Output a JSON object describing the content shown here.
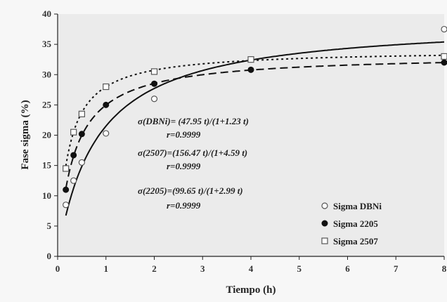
{
  "chart_data": {
    "type": "scatter",
    "xlabel": "Tiempo (h)",
    "ylabel": "Fase sigma (%)",
    "xlim": [
      0,
      8
    ],
    "ylim": [
      0,
      40
    ],
    "x_ticks": [
      0,
      1,
      2,
      3,
      4,
      5,
      6,
      7,
      8
    ],
    "y_ticks": [
      0,
      5,
      10,
      15,
      20,
      25,
      30,
      35,
      40
    ],
    "grid": false,
    "legend_position": "bottom-right",
    "series": [
      {
        "name": "Sigma DBNi",
        "marker": "open-circle",
        "line_style": "solid",
        "points": [
          [
            0.17,
            8.5
          ],
          [
            0.33,
            12.5
          ],
          [
            0.5,
            15.5
          ],
          [
            1,
            20.3
          ],
          [
            2,
            26
          ],
          [
            4,
            32.5
          ],
          [
            8,
            37.5
          ]
        ],
        "fit": {
          "a": 47.95,
          "b": 1.23
        }
      },
      {
        "name": "Sigma  2205",
        "marker": "filled-circle",
        "line_style": "dashed",
        "points": [
          [
            0.17,
            11
          ],
          [
            0.33,
            16.7
          ],
          [
            0.5,
            20.2
          ],
          [
            1,
            25
          ],
          [
            2,
            28.5
          ],
          [
            4,
            30.8
          ],
          [
            8,
            32
          ]
        ],
        "fit": {
          "a": 99.65,
          "b": 2.99
        }
      },
      {
        "name": "Sigma  2507",
        "marker": "open-square",
        "line_style": "dotted",
        "points": [
          [
            0.17,
            14.5
          ],
          [
            0.33,
            20.5
          ],
          [
            0.5,
            23.5
          ],
          [
            1,
            28
          ],
          [
            2,
            30.5
          ],
          [
            4,
            32.5
          ],
          [
            8,
            33
          ]
        ],
        "fit": {
          "a": 156.47,
          "b": 4.59
        }
      }
    ],
    "annotations": [
      {
        "equation": "σ(DBNi)= (47.95 t)/(1+1.23 t)",
        "r": "r=0.9999"
      },
      {
        "equation": "σ(2507)=(156.47 t)/(1+4.59 t)",
        "r": "r=0.9999"
      },
      {
        "equation": "σ(2205)=(99.65 t)/(1+2.99 t)",
        "r": "r=0.9999"
      }
    ]
  }
}
